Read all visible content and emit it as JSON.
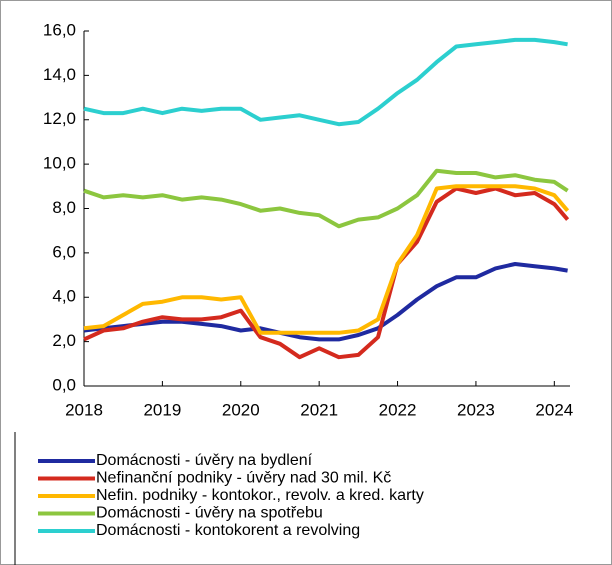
{
  "chart_data": {
    "type": "line",
    "x": [
      2018,
      2018.25,
      2018.5,
      2018.75,
      2019,
      2019.25,
      2019.5,
      2019.75,
      2020,
      2020.25,
      2020.5,
      2020.75,
      2021,
      2021.25,
      2021.5,
      2021.75,
      2022,
      2022.25,
      2022.5,
      2022.75,
      2023,
      2023.25,
      2023.5,
      2023.75,
      2024,
      2024.17
    ],
    "series": [
      {
        "name": "Domácnosti - úvěry na bydlení",
        "color": "#1f2aa0",
        "values": [
          2.5,
          2.6,
          2.7,
          2.8,
          2.9,
          2.9,
          2.8,
          2.7,
          2.5,
          2.6,
          2.4,
          2.2,
          2.1,
          2.1,
          2.3,
          2.6,
          3.2,
          3.9,
          4.5,
          4.9,
          4.9,
          5.3,
          5.5,
          5.4,
          5.3,
          5.2
        ]
      },
      {
        "name": "Nefinanční podniky - úvěry nad 30 mil. Kč",
        "color": "#d42a1e",
        "values": [
          2.1,
          2.5,
          2.6,
          2.9,
          3.1,
          3.0,
          3.0,
          3.1,
          3.4,
          2.2,
          1.9,
          1.3,
          1.7,
          1.3,
          1.4,
          2.2,
          5.5,
          6.5,
          8.3,
          8.9,
          8.7,
          8.9,
          8.6,
          8.7,
          8.2,
          7.5
        ]
      },
      {
        "name": "Nefin. podniky - kontokor., revolv. a kred. karty",
        "color": "#ffb800",
        "values": [
          2.6,
          2.7,
          3.2,
          3.7,
          3.8,
          4.0,
          4.0,
          3.9,
          4.0,
          2.4,
          2.4,
          2.4,
          2.4,
          2.4,
          2.5,
          3.0,
          5.5,
          6.8,
          8.9,
          9.0,
          9.0,
          9.0,
          9.0,
          8.9,
          8.6,
          7.9
        ]
      },
      {
        "name": "Domácnosti - úvěry na spotřebu",
        "color": "#8cc63f",
        "values": [
          8.8,
          8.5,
          8.6,
          8.5,
          8.6,
          8.4,
          8.5,
          8.4,
          8.2,
          7.9,
          8.0,
          7.8,
          7.7,
          7.2,
          7.5,
          7.6,
          8.0,
          8.6,
          9.7,
          9.6,
          9.6,
          9.4,
          9.5,
          9.3,
          9.2,
          8.8
        ]
      },
      {
        "name": "Domácnosti - kontokorent a revolving",
        "color": "#2ccfcf",
        "values": [
          12.5,
          12.3,
          12.3,
          12.5,
          12.3,
          12.5,
          12.4,
          12.5,
          12.5,
          12.0,
          12.1,
          12.2,
          12.0,
          11.8,
          11.9,
          12.5,
          13.2,
          13.8,
          14.6,
          15.3,
          15.4,
          15.5,
          15.6,
          15.6,
          15.5,
          15.4
        ]
      }
    ],
    "xlim": [
      2018,
      2024.2
    ],
    "xticks": [
      2018,
      2019,
      2020,
      2021,
      2022,
      2023,
      2024
    ],
    "ylim": [
      0,
      16
    ],
    "yticks": [
      {
        "value": 0,
        "label": "0,0"
      },
      {
        "value": 2,
        "label": "2,0"
      },
      {
        "value": 4,
        "label": "4,0"
      },
      {
        "value": 6,
        "label": "6,0"
      },
      {
        "value": 8,
        "label": "8,0"
      },
      {
        "value": 10,
        "label": "10,0"
      },
      {
        "value": 12,
        "label": "12,0"
      },
      {
        "value": 14,
        "label": "14,0"
      },
      {
        "value": 16,
        "label": "16,0"
      }
    ],
    "grid": false
  }
}
